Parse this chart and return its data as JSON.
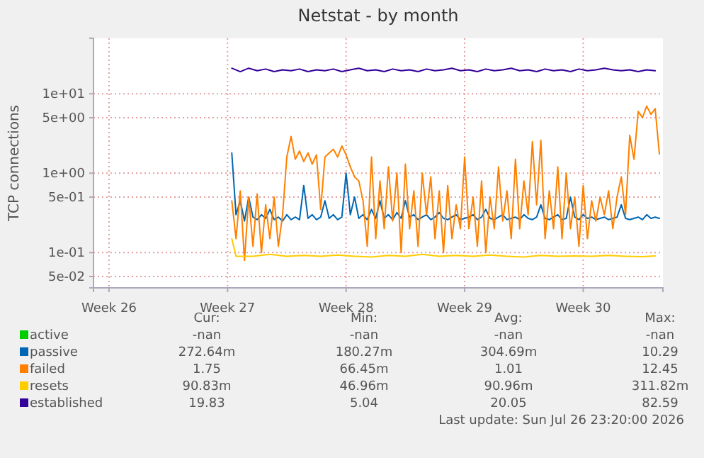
{
  "chart_data": {
    "type": "line",
    "title": "Netstat - by month",
    "ylabel": "TCP connections",
    "log": "y",
    "grid": true,
    "legend": "bottom left",
    "xlim": [
      "2026-06-21T02:00",
      "2026-07-24T17:00"
    ],
    "ylim": [
      0.036,
      50
    ],
    "xticks": [
      {
        "value": "2026-06-22",
        "label": "Week 26"
      },
      {
        "value": "2026-06-29",
        "label": "Week 27"
      },
      {
        "value": "2026-07-06",
        "label": "Week 28"
      },
      {
        "value": "2026-07-13",
        "label": "Week 29"
      },
      {
        "value": "2026-07-20",
        "label": "Week 30"
      }
    ],
    "yticks": [
      {
        "value": 10,
        "label": "1e+01"
      },
      {
        "value": 5,
        "label": "5e+00"
      },
      {
        "value": 1,
        "label": "1e+00"
      },
      {
        "value": 0.5,
        "label": "5e-01"
      },
      {
        "value": 0.1,
        "label": "1e-01"
      },
      {
        "value": 0.05,
        "label": "5e-02"
      }
    ],
    "x": [
      "2026-06-29T06:00",
      "2026-06-29T12:00",
      "2026-06-29T18:00",
      "2026-06-30T00:00",
      "2026-06-30T06:00",
      "2026-06-30T12:00",
      "2026-06-30T18:00",
      "2026-07-01T00:00",
      "2026-07-01T06:00",
      "2026-07-01T12:00",
      "2026-07-01T18:00",
      "2026-07-02T00:00",
      "2026-07-02T06:00",
      "2026-07-02T12:00",
      "2026-07-02T18:00",
      "2026-07-03T00:00",
      "2026-07-03T06:00",
      "2026-07-03T12:00",
      "2026-07-03T18:00",
      "2026-07-04T00:00",
      "2026-07-04T06:00",
      "2026-07-04T12:00",
      "2026-07-04T18:00",
      "2026-07-05T00:00",
      "2026-07-05T06:00",
      "2026-07-05T12:00",
      "2026-07-05T18:00",
      "2026-07-06T00:00",
      "2026-07-06T06:00",
      "2026-07-06T12:00",
      "2026-07-06T18:00",
      "2026-07-07T00:00",
      "2026-07-07T06:00",
      "2026-07-07T12:00",
      "2026-07-07T18:00",
      "2026-07-08T00:00",
      "2026-07-08T06:00",
      "2026-07-08T12:00",
      "2026-07-08T18:00",
      "2026-07-09T00:00",
      "2026-07-09T06:00",
      "2026-07-09T12:00",
      "2026-07-09T18:00",
      "2026-07-10T00:00",
      "2026-07-10T06:00",
      "2026-07-10T12:00",
      "2026-07-10T18:00",
      "2026-07-11T00:00",
      "2026-07-11T06:00",
      "2026-07-11T12:00",
      "2026-07-11T18:00",
      "2026-07-12T00:00",
      "2026-07-12T06:00",
      "2026-07-12T12:00",
      "2026-07-12T18:00",
      "2026-07-13T00:00",
      "2026-07-13T06:00",
      "2026-07-13T12:00",
      "2026-07-13T18:00",
      "2026-07-14T00:00",
      "2026-07-14T06:00",
      "2026-07-14T12:00",
      "2026-07-14T18:00",
      "2026-07-15T00:00",
      "2026-07-15T06:00",
      "2026-07-15T12:00",
      "2026-07-15T18:00",
      "2026-07-16T00:00",
      "2026-07-16T06:00",
      "2026-07-16T12:00",
      "2026-07-16T18:00",
      "2026-07-17T00:00",
      "2026-07-17T06:00",
      "2026-07-17T12:00",
      "2026-07-17T18:00",
      "2026-07-18T00:00",
      "2026-07-18T06:00",
      "2026-07-18T12:00",
      "2026-07-18T18:00",
      "2026-07-19T00:00",
      "2026-07-19T06:00",
      "2026-07-19T12:00",
      "2026-07-19T18:00",
      "2026-07-20T00:00",
      "2026-07-20T06:00",
      "2026-07-20T12:00",
      "2026-07-20T18:00",
      "2026-07-21T00:00",
      "2026-07-21T06:00",
      "2026-07-21T12:00",
      "2026-07-21T18:00",
      "2026-07-22T00:00",
      "2026-07-22T06:00",
      "2026-07-22T12:00",
      "2026-07-22T18:00",
      "2026-07-23T00:00",
      "2026-07-23T06:00",
      "2026-07-23T12:00",
      "2026-07-23T18:00",
      "2026-07-24T00:00",
      "2026-07-24T06:00",
      "2026-07-24T12:00"
    ],
    "series": [
      {
        "name": "active",
        "color": "#00cc00",
        "values": [
          null,
          null,
          null,
          null,
          null,
          null,
          null,
          null,
          null,
          null,
          null,
          null,
          null,
          null,
          null,
          null,
          null,
          null,
          null,
          null,
          null,
          null,
          null,
          null,
          null,
          null,
          null,
          null,
          null,
          null,
          null,
          null,
          null,
          null,
          null,
          null,
          null,
          null,
          null,
          null,
          null,
          null,
          null,
          null,
          null,
          null,
          null,
          null,
          null,
          null,
          null,
          null,
          null,
          null,
          null,
          null,
          null,
          null,
          null,
          null,
          null,
          null,
          null,
          null,
          null,
          null,
          null,
          null,
          null,
          null,
          null,
          null,
          null,
          null,
          null,
          null,
          null,
          null,
          null,
          null,
          null,
          null,
          null,
          null,
          null,
          null,
          null,
          null,
          null,
          null,
          null,
          null,
          null,
          null,
          null,
          null,
          null,
          null,
          null,
          null,
          null,
          null
        ]
      },
      {
        "name": "passive",
        "color": "#0066b3",
        "values": [
          1.8,
          0.3,
          0.45,
          0.25,
          0.5,
          0.28,
          0.26,
          0.3,
          0.27,
          0.35,
          0.26,
          0.28,
          0.25,
          0.3,
          0.26,
          0.28,
          0.26,
          0.7,
          0.27,
          0.3,
          0.26,
          0.28,
          0.45,
          0.27,
          0.3,
          0.26,
          0.28,
          1.0,
          0.3,
          0.5,
          0.27,
          0.3,
          0.26,
          0.35,
          0.27,
          0.45,
          0.27,
          0.3,
          0.26,
          0.32,
          0.27,
          0.45,
          0.28,
          0.3,
          0.26,
          0.28,
          0.3,
          0.26,
          0.28,
          0.32,
          0.27,
          0.26,
          0.28,
          0.3,
          0.26,
          0.27,
          0.28,
          0.3,
          0.26,
          0.28,
          0.35,
          0.27,
          0.26,
          0.28,
          0.3,
          0.26,
          0.27,
          0.28,
          0.26,
          0.3,
          0.27,
          0.26,
          0.28,
          0.4,
          0.27,
          0.26,
          0.28,
          0.3,
          0.26,
          0.27,
          0.5,
          0.28,
          0.26,
          0.3,
          0.27,
          0.28,
          0.26,
          0.27,
          0.28,
          0.26,
          0.27,
          0.28,
          0.4,
          0.27,
          0.26,
          0.27,
          0.28,
          0.26,
          0.3,
          0.27,
          0.28,
          0.27
        ]
      },
      {
        "name": "failed",
        "color": "#ff8000",
        "values": [
          0.45,
          0.15,
          0.6,
          0.08,
          0.5,
          0.12,
          0.55,
          0.1,
          0.4,
          0.15,
          0.5,
          0.12,
          0.3,
          1.6,
          2.9,
          1.5,
          1.9,
          1.4,
          1.8,
          1.3,
          1.7,
          0.35,
          1.6,
          1.8,
          2.0,
          1.6,
          2.2,
          1.7,
          1.2,
          0.9,
          0.8,
          0.45,
          0.12,
          1.6,
          0.15,
          0.8,
          0.2,
          1.2,
          0.25,
          1.0,
          0.1,
          1.3,
          0.2,
          0.6,
          0.12,
          1.0,
          0.3,
          0.9,
          0.15,
          0.6,
          0.1,
          0.7,
          0.15,
          0.4,
          0.2,
          1.6,
          0.2,
          0.5,
          0.12,
          0.8,
          0.1,
          0.5,
          0.2,
          1.2,
          0.25,
          0.6,
          0.15,
          1.5,
          0.2,
          0.8,
          0.3,
          2.5,
          0.4,
          2.6,
          0.15,
          0.6,
          0.2,
          1.2,
          0.15,
          1.0,
          0.2,
          0.5,
          0.12,
          0.7,
          0.15,
          0.45,
          0.25,
          0.5,
          0.3,
          0.6,
          0.2,
          0.5,
          0.9,
          0.3,
          3.0,
          1.5,
          6.0,
          5.0,
          7.0,
          5.5,
          6.5,
          1.75
        ]
      },
      {
        "name": "resets",
        "color": "#ffcc00",
        "x": [
          "2026-06-29T06:00",
          "2026-06-29T12:00",
          "2026-06-30T12:00",
          "2026-07-01T12:00",
          "2026-07-02T12:00",
          "2026-07-03T12:00",
          "2026-07-04T12:00",
          "2026-07-05T12:00",
          "2026-07-06T12:00",
          "2026-07-07T12:00",
          "2026-07-08T12:00",
          "2026-07-09T12:00",
          "2026-07-10T12:00",
          "2026-07-11T12:00",
          "2026-07-12T12:00",
          "2026-07-13T12:00",
          "2026-07-14T12:00",
          "2026-07-15T12:00",
          "2026-07-16T12:00",
          "2026-07-17T12:00",
          "2026-07-18T12:00",
          "2026-07-19T12:00",
          "2026-07-20T12:00",
          "2026-07-21T12:00",
          "2026-07-22T12:00",
          "2026-07-23T12:00",
          "2026-07-24T06:00"
        ],
        "values": [
          0.15,
          0.09,
          0.09,
          0.095,
          0.09,
          0.092,
          0.09,
          0.093,
          0.09,
          0.088,
          0.092,
          0.09,
          0.095,
          0.09,
          0.092,
          0.09,
          0.093,
          0.09,
          0.088,
          0.092,
          0.09,
          0.091,
          0.09,
          0.092,
          0.09,
          0.089,
          0.091
        ]
      },
      {
        "name": "established",
        "color": "#330099",
        "x": [
          "2026-06-29T06:00",
          "2026-06-29T18:00",
          "2026-06-30T06:00",
          "2026-06-30T18:00",
          "2026-07-01T06:00",
          "2026-07-01T18:00",
          "2026-07-02T06:00",
          "2026-07-02T18:00",
          "2026-07-03T06:00",
          "2026-07-03T18:00",
          "2026-07-04T06:00",
          "2026-07-04T18:00",
          "2026-07-05T06:00",
          "2026-07-05T18:00",
          "2026-07-06T06:00",
          "2026-07-06T18:00",
          "2026-07-07T06:00",
          "2026-07-07T18:00",
          "2026-07-08T06:00",
          "2026-07-08T18:00",
          "2026-07-09T06:00",
          "2026-07-09T18:00",
          "2026-07-10T06:00",
          "2026-07-10T18:00",
          "2026-07-11T06:00",
          "2026-07-11T18:00",
          "2026-07-12T06:00",
          "2026-07-12T18:00",
          "2026-07-13T06:00",
          "2026-07-13T18:00",
          "2026-07-14T06:00",
          "2026-07-14T18:00",
          "2026-07-15T06:00",
          "2026-07-15T18:00",
          "2026-07-16T06:00",
          "2026-07-16T18:00",
          "2026-07-17T06:00",
          "2026-07-17T18:00",
          "2026-07-18T06:00",
          "2026-07-18T18:00",
          "2026-07-19T06:00",
          "2026-07-19T18:00",
          "2026-07-20T06:00",
          "2026-07-20T18:00",
          "2026-07-21T06:00",
          "2026-07-21T18:00",
          "2026-07-22T06:00",
          "2026-07-22T18:00",
          "2026-07-23T06:00",
          "2026-07-23T18:00",
          "2026-07-24T06:00"
        ],
        "values": [
          21,
          19,
          21,
          19.5,
          20.5,
          19,
          20,
          19.5,
          20.5,
          19,
          20,
          19.5,
          20.5,
          19,
          20,
          21,
          19.5,
          20,
          19,
          20.5,
          19.5,
          20,
          19,
          20.5,
          19.5,
          20,
          21,
          19.5,
          20,
          19,
          20.5,
          19.5,
          20,
          21,
          19.5,
          20,
          19,
          20.5,
          19.5,
          20,
          19,
          20.5,
          19.5,
          20,
          21,
          20,
          19.5,
          20,
          19,
          20,
          19.5
        ]
      }
    ],
    "annotations": [
      "Cur:",
      "Min:",
      "Avg:",
      "Max:",
      "-nan",
      "-nan",
      "-nan",
      "-nan",
      "272.64m",
      "180.27m",
      "304.69m",
      "10.29",
      "1.75",
      "66.45m",
      "1.01",
      "12.45",
      "90.83m",
      "46.96m",
      "90.96m",
      "311.82m",
      "19.83",
      "5.04",
      "20.05",
      "82.59",
      "Last update: Sun Jul 26 23:20:00 2026"
    ]
  }
}
